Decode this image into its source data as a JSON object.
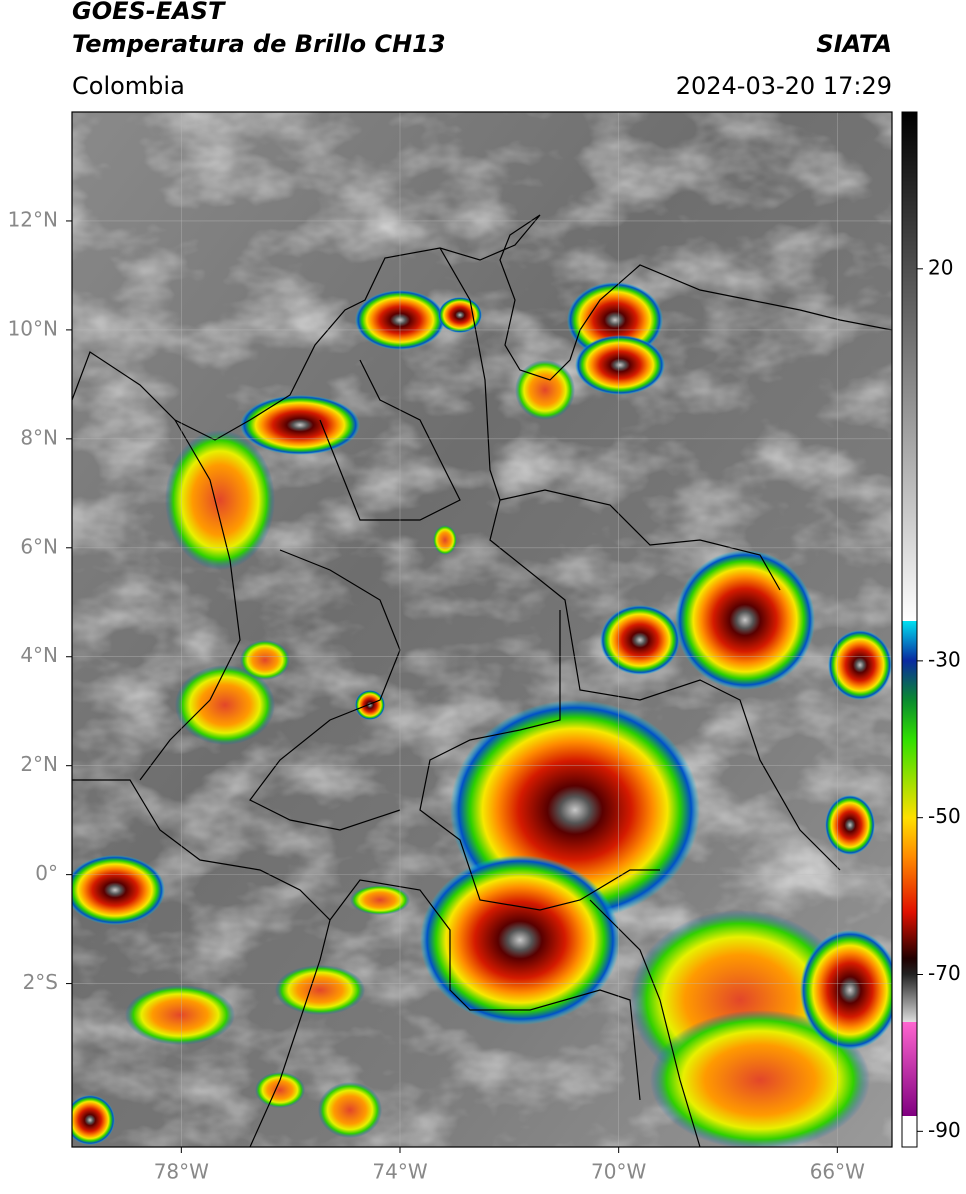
{
  "header": {
    "title": "GOES-EAST",
    "subtitle": "Temperatura de Brillo CH13",
    "region": "Colombia",
    "source": "SIATA",
    "datetime": "2024-03-20 17:29"
  },
  "map": {
    "xlim": [
      -80,
      -65
    ],
    "ylim": [
      -5,
      14
    ],
    "xticks": [
      {
        "value": -78,
        "label": "78°W"
      },
      {
        "value": -74,
        "label": "74°W"
      },
      {
        "value": -70,
        "label": "70°W"
      },
      {
        "value": -66,
        "label": "66°W"
      }
    ],
    "yticks": [
      {
        "value": 12,
        "label": "12°N"
      },
      {
        "value": 10,
        "label": "10°N"
      },
      {
        "value": 8,
        "label": "8°N"
      },
      {
        "value": 6,
        "label": "6°N"
      },
      {
        "value": 4,
        "label": "4°N"
      },
      {
        "value": 2,
        "label": "2°N"
      },
      {
        "value": 0,
        "label": "0°"
      },
      {
        "value": -2,
        "label": "2°S"
      }
    ],
    "grid": true
  },
  "colorbar": {
    "lim": [
      -92,
      40
    ],
    "ticks": [
      20,
      -30,
      -50,
      -70,
      -90
    ]
  }
}
